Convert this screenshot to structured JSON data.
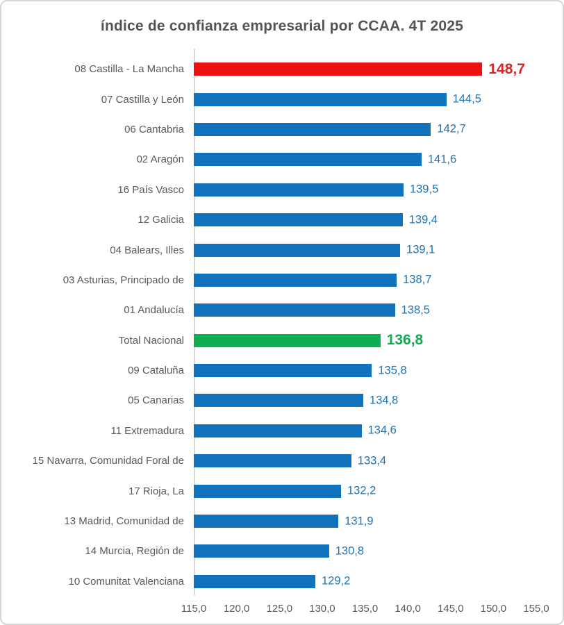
{
  "title": "índice de confianza empresarial por CCAA. 4T 2025",
  "chart_data": {
    "type": "bar",
    "orientation": "horizontal",
    "title": "índice de confianza empresarial por CCAA. 4T 2025",
    "xlim": [
      115.0,
      155.0
    ],
    "x_tick_step": 5.0,
    "x_tick_labels": [
      "115,0",
      "120,0",
      "125,0",
      "130,0",
      "135,0",
      "140,0",
      "145,0",
      "150,0",
      "155,0"
    ],
    "grid": false,
    "legend": false,
    "decimal_separator": ",",
    "bars": [
      {
        "label": "08 Castilla - La Mancha",
        "value": 148.7,
        "display": "148,7",
        "role": "max"
      },
      {
        "label": "07 Castilla y León",
        "value": 144.5,
        "display": "144,5",
        "role": "default"
      },
      {
        "label": "06 Cantabria",
        "value": 142.7,
        "display": "142,7",
        "role": "default"
      },
      {
        "label": "02 Aragón",
        "value": 141.6,
        "display": "141,6",
        "role": "default"
      },
      {
        "label": "16 País Vasco",
        "value": 139.5,
        "display": "139,5",
        "role": "default"
      },
      {
        "label": "12 Galicia",
        "value": 139.4,
        "display": "139,4",
        "role": "default"
      },
      {
        "label": "04 Balears, Illes",
        "value": 139.1,
        "display": "139,1",
        "role": "default"
      },
      {
        "label": "03 Asturias, Principado de",
        "value": 138.7,
        "display": "138,7",
        "role": "default"
      },
      {
        "label": "01 Andalucía",
        "value": 138.5,
        "display": "138,5",
        "role": "default"
      },
      {
        "label": "Total Nacional",
        "value": 136.8,
        "display": "136,8",
        "role": "total"
      },
      {
        "label": "09 Cataluña",
        "value": 135.8,
        "display": "135,8",
        "role": "default"
      },
      {
        "label": "05 Canarias",
        "value": 134.8,
        "display": "134,8",
        "role": "default"
      },
      {
        "label": "11 Extremadura",
        "value": 134.6,
        "display": "134,6",
        "role": "default"
      },
      {
        "label": "15 Navarra, Comunidad Foral de",
        "value": 133.4,
        "display": "133,4",
        "role": "default"
      },
      {
        "label": "17 Rioja, La",
        "value": 132.2,
        "display": "132,2",
        "role": "default"
      },
      {
        "label": "13 Madrid, Comunidad de",
        "value": 131.9,
        "display": "131,9",
        "role": "default"
      },
      {
        "label": "14 Murcia, Región de",
        "value": 130.8,
        "display": "130,8",
        "role": "default"
      },
      {
        "label": "10 Comunitat Valenciana",
        "value": 129.2,
        "display": "129,2",
        "role": "default"
      }
    ],
    "colors": {
      "bar_default": "#1272bc",
      "bar_max": "#ee1111",
      "bar_total": "#0fad4f",
      "value_default": "#2073b4",
      "value_max": "#d22727",
      "value_total": "#0fad4f",
      "category_label": "#595959",
      "tick_label": "#595959",
      "axis_line": "#d9d9d9",
      "title": "#545454"
    }
  }
}
